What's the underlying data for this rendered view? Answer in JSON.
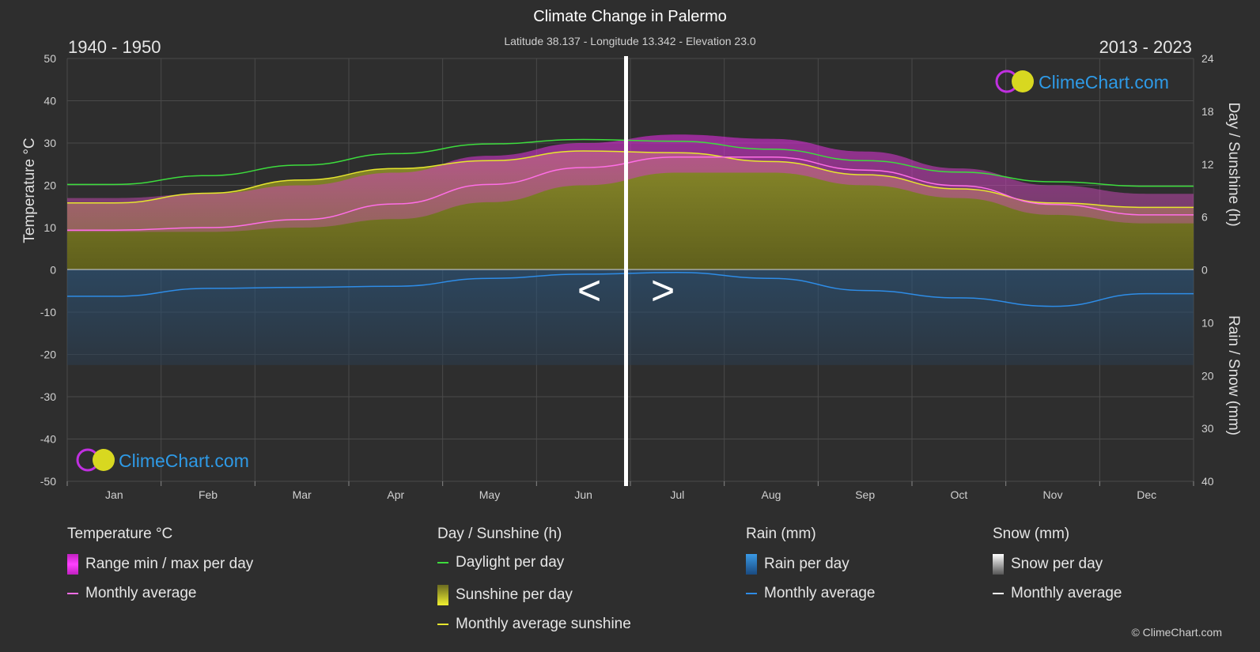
{
  "header": {
    "title": "Climate Change in Palermo",
    "subtitle": "Latitude 38.137 - Longitude 13.342 - Elevation 23.0",
    "period_left": "1940 - 1950",
    "period_right": "2013 - 2023"
  },
  "nav": {
    "prev_label": "<",
    "next_label": ">"
  },
  "watermark": {
    "text": "ClimeChart.com"
  },
  "axes": {
    "left_label": "Temperature °C",
    "right_top_label": "Day / Sunshine (h)",
    "right_bottom_label": "Rain / Snow (mm)",
    "left_ticks": [
      "50",
      "40",
      "30",
      "20",
      "10",
      "0",
      "-10",
      "-20",
      "-30",
      "-40",
      "-50"
    ],
    "right_top_ticks": [
      "24",
      "18",
      "12",
      "6",
      "0"
    ],
    "right_bottom_ticks": [
      "10",
      "20",
      "30",
      "40"
    ],
    "months": [
      "Jan",
      "Feb",
      "Mar",
      "Apr",
      "May",
      "Jun",
      "Jul",
      "Aug",
      "Sep",
      "Oct",
      "Nov",
      "Dec"
    ]
  },
  "chart_data": {
    "type": "area",
    "title": "Climate Change in Palermo",
    "x": [
      "Jan",
      "Feb",
      "Mar",
      "Apr",
      "May",
      "Jun",
      "Jul",
      "Aug",
      "Sep",
      "Oct",
      "Nov",
      "Dec"
    ],
    "ylim_temperature": [
      -50,
      50
    ],
    "ylim_sunshine_hours": [
      0,
      24
    ],
    "ylim_rain_mm": [
      0,
      40
    ],
    "grid": true,
    "series": [
      {
        "name": "Daylight per day",
        "unit": "h",
        "color": "#3ddc3d",
        "values": [
          9.7,
          10.7,
          11.9,
          13.2,
          14.3,
          14.8,
          14.6,
          13.7,
          12.4,
          11.1,
          10.0,
          9.5
        ]
      },
      {
        "name": "Monthly average sunshine",
        "unit": "h",
        "color": "#e6e62e",
        "values": [
          7.6,
          8.7,
          10.2,
          11.5,
          12.4,
          13.5,
          13.3,
          12.3,
          10.8,
          9.2,
          7.6,
          7.1
        ]
      },
      {
        "name": "Monthly average",
        "unit": "°C",
        "color": "#ff6ee6",
        "values": [
          9.4,
          10.0,
          11.9,
          15.6,
          20.2,
          24.2,
          26.7,
          26.7,
          23.6,
          19.9,
          15.5,
          13.0
        ]
      },
      {
        "name": "Monthly average rain",
        "unit": "mm",
        "color": "#2e8ce6",
        "values": [
          5.0,
          3.5,
          3.3,
          3.1,
          1.6,
          0.8,
          0.5,
          1.6,
          3.9,
          5.3,
          6.9,
          4.5
        ]
      }
    ],
    "temperature_range_max": [
      17,
      18,
      20,
      23,
      27,
      30,
      32,
      31,
      28,
      24,
      20,
      18
    ],
    "temperature_range_min": [
      9,
      9,
      10,
      12,
      16,
      20,
      23,
      23,
      20,
      17,
      13,
      11
    ]
  },
  "legend": {
    "temp_head": "Temperature °C",
    "temp_range": "Range min / max per day",
    "temp_avg": "Monthly average",
    "sun_head": "Day / Sunshine (h)",
    "sun_daylight": "Daylight per day",
    "sun_sunshine": "Sunshine per day",
    "sun_avg": "Monthly average sunshine",
    "rain_head": "Rain (mm)",
    "rain_day": "Rain per day",
    "rain_avg": "Monthly average",
    "snow_head": "Snow (mm)",
    "snow_day": "Snow per day",
    "snow_avg": "Monthly average"
  },
  "colors": {
    "background": "#2e2e2e",
    "daylight": "#3ddc3d",
    "sunshine": "#e6e62e",
    "temp_avg": "#ff6ee6",
    "temp_range": "#e020e0",
    "rain": "#2e8ce6",
    "snow": "#ffffff",
    "brand": "#2e9ae6"
  },
  "footer": {
    "copyright": "© ClimeChart.com"
  }
}
